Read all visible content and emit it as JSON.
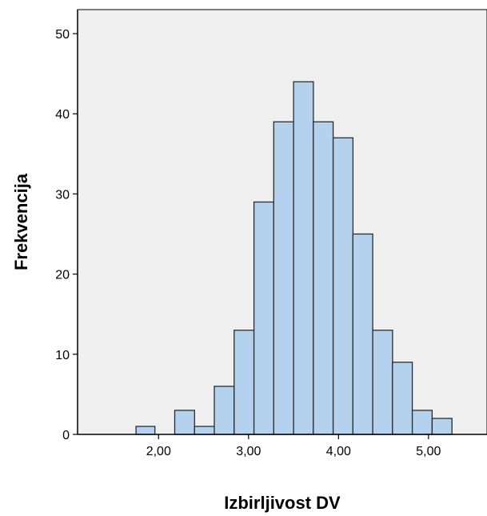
{
  "chart_data": {
    "type": "bar",
    "title": "",
    "xlabel": "Izbirljivost DV",
    "ylabel": "Frekvencija",
    "xlim": [
      1.1,
      5.65
    ],
    "ylim": [
      0,
      53
    ],
    "grid": false,
    "x_ticks": [
      {
        "value": 2.0,
        "label": "2,00"
      },
      {
        "value": 3.0,
        "label": "3,00"
      },
      {
        "value": 4.0,
        "label": "4,00"
      },
      {
        "value": 5.0,
        "label": "5,00"
      }
    ],
    "y_ticks": [
      {
        "value": 0,
        "label": "0"
      },
      {
        "value": 10,
        "label": "10"
      },
      {
        "value": 20,
        "label": "20"
      },
      {
        "value": 30,
        "label": "30"
      },
      {
        "value": 40,
        "label": "40"
      },
      {
        "value": 50,
        "label": "50"
      }
    ],
    "bins": [
      {
        "x0": 1.75,
        "x1": 1.96,
        "value": 1
      },
      {
        "x0": 1.96,
        "x1": 2.18,
        "value": 0
      },
      {
        "x0": 2.18,
        "x1": 2.4,
        "value": 3
      },
      {
        "x0": 2.4,
        "x1": 2.62,
        "value": 1
      },
      {
        "x0": 2.62,
        "x1": 2.84,
        "value": 6
      },
      {
        "x0": 2.84,
        "x1": 3.06,
        "value": 13
      },
      {
        "x0": 3.06,
        "x1": 3.28,
        "value": 29
      },
      {
        "x0": 3.28,
        "x1": 3.5,
        "value": 39
      },
      {
        "x0": 3.5,
        "x1": 3.72,
        "value": 44
      },
      {
        "x0": 3.72,
        "x1": 3.94,
        "value": 39
      },
      {
        "x0": 3.94,
        "x1": 4.16,
        "value": 37
      },
      {
        "x0": 4.16,
        "x1": 4.38,
        "value": 25
      },
      {
        "x0": 4.38,
        "x1": 4.6,
        "value": 13
      },
      {
        "x0": 4.6,
        "x1": 4.82,
        "value": 9
      },
      {
        "x0": 4.82,
        "x1": 5.04,
        "value": 3
      },
      {
        "x0": 5.04,
        "x1": 5.26,
        "value": 2
      }
    ],
    "colors": {
      "plot_background": "#efefef",
      "bar_fill": "#b4d1ee",
      "bar_stroke": "#2b2b2b",
      "axis": "#000000"
    }
  }
}
